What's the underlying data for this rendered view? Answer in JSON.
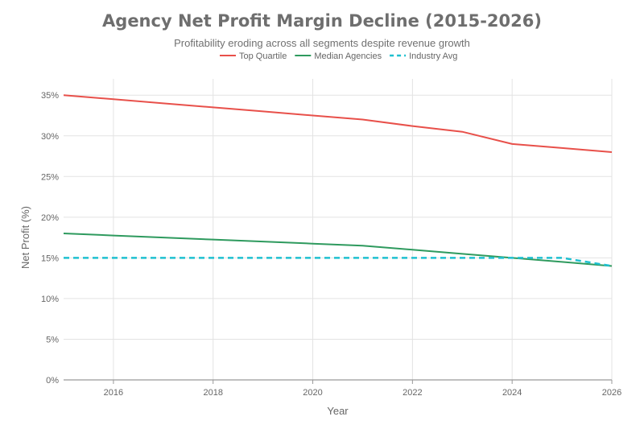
{
  "chart_data": {
    "type": "line",
    "title": "Agency Net Profit Margin Decline (2015-2026)",
    "subtitle": "Profitability eroding across all segments despite revenue growth",
    "xlabel": "Year",
    "ylabel": "Net Profit (%)",
    "xlim": [
      2015,
      2026
    ],
    "ylim": [
      0,
      37
    ],
    "x_ticks": [
      2016,
      2018,
      2020,
      2022,
      2024,
      2026
    ],
    "y_ticks": [
      "0%",
      "5%",
      "10%",
      "15%",
      "20%",
      "25%",
      "30%",
      "35%"
    ],
    "y_tick_values": [
      0,
      5,
      10,
      15,
      20,
      25,
      30,
      35
    ],
    "grid": true,
    "legend_position": "top",
    "x": [
      2015,
      2016,
      2017,
      2018,
      2019,
      2020,
      2021,
      2022,
      2023,
      2024,
      2025,
      2026
    ],
    "series": [
      {
        "name": "Top Quartile",
        "color": "#e8504a",
        "dash": false,
        "values": [
          35,
          34.5,
          34,
          33.5,
          33,
          32.5,
          32,
          31.2,
          30.5,
          29,
          28.5,
          28
        ]
      },
      {
        "name": "Median Agencies",
        "color": "#2e9a5e",
        "dash": false,
        "values": [
          18,
          17.75,
          17.5,
          17.25,
          17,
          16.75,
          16.5,
          16,
          15.5,
          15,
          14.5,
          14
        ]
      },
      {
        "name": "Industry Avg",
        "color": "#1fc0d0",
        "dash": true,
        "values": [
          15,
          15,
          15,
          15,
          15,
          15,
          15,
          15,
          15,
          15,
          15,
          14
        ]
      }
    ]
  }
}
